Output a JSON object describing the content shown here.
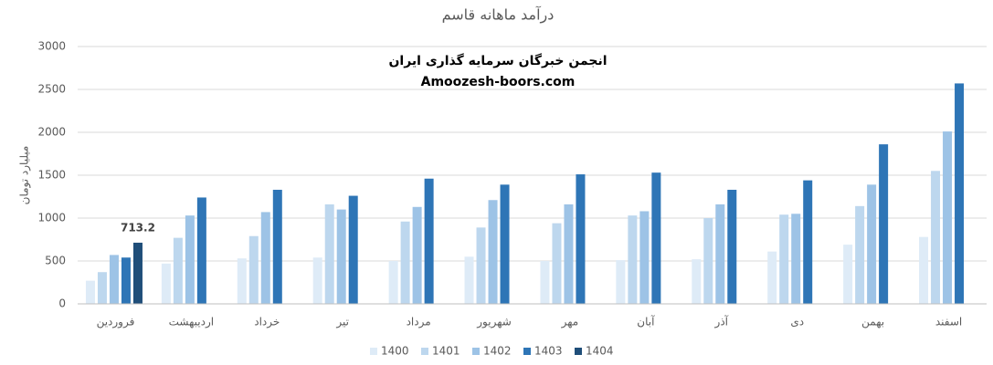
{
  "chart_data": {
    "type": "bar",
    "title": "درآمد ماهانه قاسم",
    "y_label": "میلیارد تومان",
    "annotations": [
      "انجمن خبرگان سرمایه گذاری ایران",
      "Amoozesh-boors.com"
    ],
    "categories": [
      "فروردین",
      "اردیبهشت",
      "خرداد",
      "تیر",
      "مرداد",
      "شهریور",
      "مهر",
      "آبان",
      "آذر",
      "دی",
      "بهمن",
      "اسفند"
    ],
    "series": [
      {
        "name": "1400",
        "color": "#deebf7",
        "values": [
          270,
          470,
          530,
          540,
          500,
          550,
          500,
          510,
          520,
          610,
          690,
          780
        ]
      },
      {
        "name": "1401",
        "color": "#bdd7ee",
        "values": [
          370,
          770,
          790,
          1160,
          960,
          890,
          940,
          1030,
          1000,
          1040,
          1140,
          1550
        ]
      },
      {
        "name": "1402",
        "color": "#9dc3e6",
        "values": [
          570,
          1030,
          1070,
          1100,
          1130,
          1210,
          1160,
          1080,
          1160,
          1050,
          1390,
          2010
        ]
      },
      {
        "name": "1403",
        "color": "#2e75b6",
        "values": [
          540,
          1240,
          1330,
          1260,
          1460,
          1390,
          1510,
          1530,
          1330,
          1440,
          1860,
          2570
        ]
      },
      {
        "name": "1404",
        "color": "#1f4e79",
        "label_values": true,
        "values": [
          713.2,
          null,
          null,
          null,
          null,
          null,
          null,
          null,
          null,
          null,
          null,
          null
        ]
      }
    ],
    "ylim": [
      0,
      3000
    ],
    "yticks": [
      0,
      500,
      1000,
      1500,
      2000,
      2500,
      3000
    ],
    "grid": true,
    "legend": "bottom"
  }
}
